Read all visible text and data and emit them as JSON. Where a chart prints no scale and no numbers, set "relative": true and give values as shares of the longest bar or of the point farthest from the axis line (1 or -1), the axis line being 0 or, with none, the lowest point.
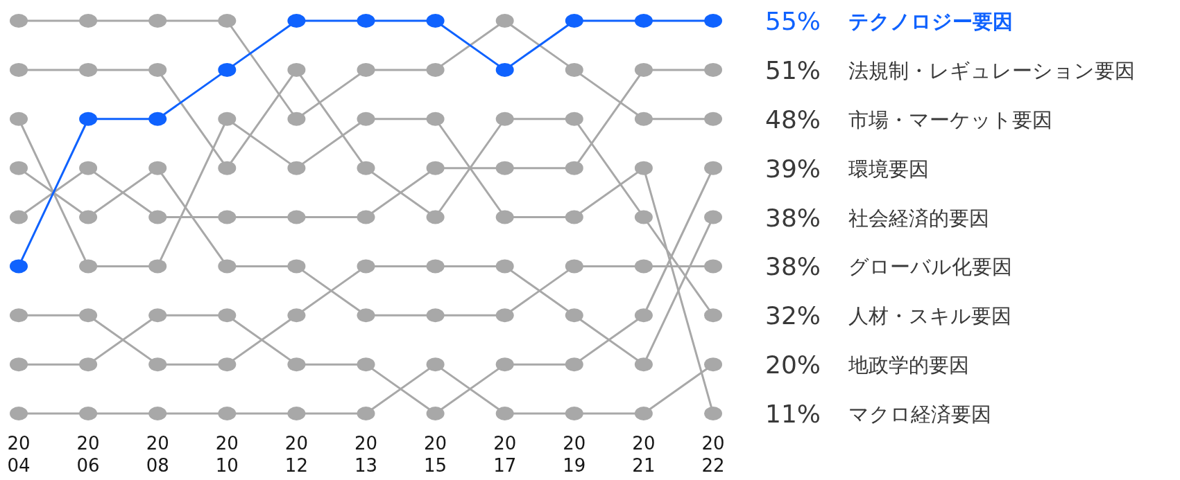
{
  "chart_data": {
    "type": "line",
    "relative": true,
    "legend": false,
    "grid": false,
    "marker": "circle",
    "line_style": "solid",
    "categories": [
      "2004",
      "2006",
      "2008",
      "2010",
      "2012",
      "2013",
      "2015",
      "2017",
      "2019",
      "2021",
      "2022"
    ],
    "series": [
      {
        "name": "テクノロジー要因",
        "color": "#0f62fe",
        "values": [
          0.375,
          0.75,
          0.75,
          0.875,
          1,
          1,
          1,
          0.875,
          1,
          1,
          1
        ]
      },
      {
        "name": "法規制・レギュレーション要因",
        "color": "#a8a8a8",
        "values": [
          0.5,
          0.625,
          0.5,
          0.5,
          0.5,
          0.5,
          0.625,
          0.625,
          0.625,
          0.875,
          0.875
        ]
      },
      {
        "name": "市場・マーケット要因",
        "color": "#a8a8a8",
        "values": [
          1,
          1,
          1,
          1,
          0.75,
          0.875,
          0.875,
          1,
          0.875,
          0.75,
          0.75
        ]
      },
      {
        "name": "環境要因",
        "color": "#a8a8a8",
        "values": [
          0.125,
          0.125,
          0.25,
          0.25,
          0.125,
          0.125,
          0,
          0.125,
          0.125,
          0.25,
          0.625
        ]
      },
      {
        "name": "社会経済的要因",
        "color": "#a8a8a8",
        "values": [
          0.25,
          0.25,
          0.125,
          0.125,
          0.25,
          0.375,
          0.375,
          0.375,
          0.25,
          0.125,
          0.5
        ]
      },
      {
        "name": "グローバル化要因",
        "color": "#a8a8a8",
        "values": [
          0.625,
          0.5,
          0.625,
          0.375,
          0.375,
          0.25,
          0.25,
          0.25,
          0.375,
          0.375,
          0.375
        ]
      },
      {
        "name": "人材・スキル要因",
        "color": "#a8a8a8",
        "values": [
          0.875,
          0.875,
          0.875,
          0.625,
          0.875,
          0.625,
          0.5,
          0.75,
          0.75,
          0.5,
          0.25
        ]
      },
      {
        "name": "地政学的要因",
        "color": "#a8a8a8",
        "values": [
          0,
          0,
          0,
          0,
          0,
          0,
          0.125,
          0,
          0,
          0,
          0.125
        ]
      },
      {
        "name": "マクロ経済要因",
        "color": "#a8a8a8",
        "values": [
          0.75,
          0.375,
          0.375,
          0.75,
          0.625,
          0.75,
          0.75,
          0.5,
          0.5,
          0.625,
          0
        ]
      }
    ],
    "annotations": [
      {
        "text": "55%",
        "x": "2022",
        "y": 1
      },
      {
        "text": "51%",
        "x": "2022",
        "y": 0.875
      },
      {
        "text": "48%",
        "x": "2022",
        "y": 0.75
      },
      {
        "text": "39%",
        "x": "2022",
        "y": 0.625
      },
      {
        "text": "38%",
        "x": "2022",
        "y": 0.5
      },
      {
        "text": "38%",
        "x": "2022",
        "y": 0.375
      },
      {
        "text": "32%",
        "x": "2022",
        "y": 0.25
      },
      {
        "text": "20%",
        "x": "2022",
        "y": 0.125
      },
      {
        "text": "11%",
        "x": "2022",
        "y": 0
      }
    ]
  }
}
